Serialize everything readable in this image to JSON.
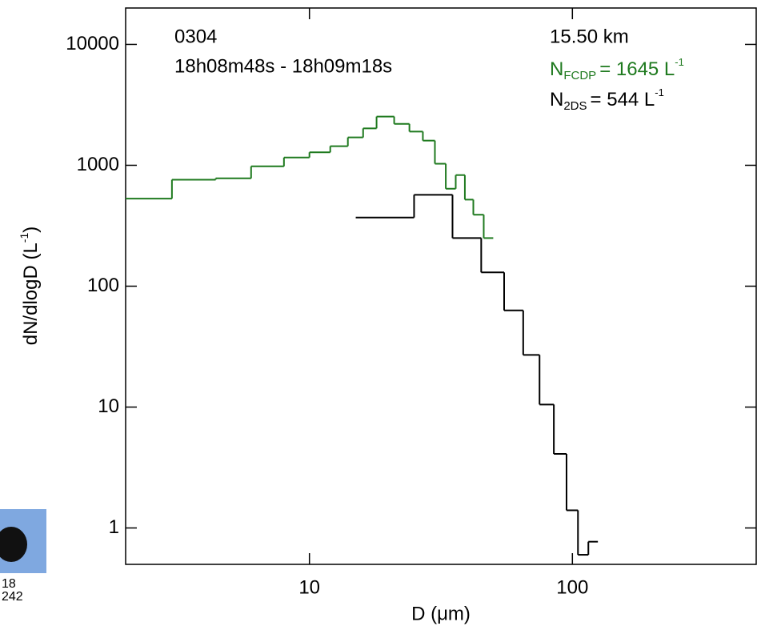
{
  "chart_data": {
    "type": "step",
    "annotations": {
      "id": "0304",
      "time": "18h08m48s - 18h09m18s",
      "altitude": "15.50 km",
      "n_fcdp": {
        "name": "N",
        "sub": "FCDP",
        "text": "=  1645 L",
        "sup": "-1"
      },
      "n_2ds": {
        "name": "N",
        "sub": "2DS",
        "text": "=   544 L",
        "sup": "-1"
      }
    },
    "ylabel": {
      "text": "dN/dlogD (L",
      "sup": "-1",
      "end": ")"
    },
    "xlabel": "D (μm)",
    "xscale": "log",
    "yscale": "log",
    "xlim": [
      2,
      500
    ],
    "ylim": [
      0.5,
      20000
    ],
    "xticks": [
      10,
      100
    ],
    "yticks": [
      1,
      10,
      100,
      1000,
      10000
    ],
    "series": [
      {
        "name": "FCDP",
        "color": "#1f7a1f",
        "bins": [
          2,
          3,
          4.4,
          6,
          8,
          10,
          12,
          14,
          16,
          18,
          21,
          24,
          27,
          30,
          33,
          36,
          39,
          42,
          46,
          50
        ],
        "values": [
          530,
          760,
          780,
          980,
          1160,
          1280,
          1440,
          1700,
          2020,
          2530,
          2200,
          1900,
          1600,
          1030,
          640,
          830,
          520,
          390,
          250
        ]
      },
      {
        "name": "2DS",
        "color": "#000000",
        "bins": [
          15,
          25,
          35,
          45,
          55,
          65,
          75,
          85,
          95,
          105,
          115,
          125
        ],
        "values": [
          370,
          570,
          250,
          130,
          63,
          27,
          10.5,
          4.1,
          1.4,
          0.6,
          0.77
        ]
      }
    ],
    "inset": {
      "texts": [
        "18",
        "242"
      ]
    }
  }
}
